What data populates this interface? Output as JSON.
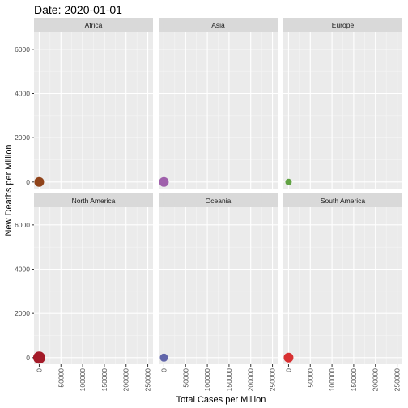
{
  "title": "Date: 2020-01-01",
  "colors": {
    "panel_bg": "#ebebeb",
    "strip_bg": "#d9d9d9",
    "grid_major": "#ffffff",
    "grid_minor": "#f5f5f5",
    "axis_text": "#4d4d4d",
    "axis_title": "#000000"
  },
  "chart_data": {
    "type": "scatter",
    "facet_layout": "2 rows x 3 columns",
    "xlabel": "Total Cases per Million",
    "ylabel": "New Deaths per Million",
    "xlim": [
      -12000,
      262000
    ],
    "ylim": [
      -300,
      6800
    ],
    "x_ticks": [
      0,
      50000,
      100000,
      150000,
      200000,
      250000
    ],
    "y_ticks": [
      0,
      2000,
      4000,
      6000
    ],
    "grid": true,
    "legend": "none",
    "panels": [
      {
        "name": "Africa",
        "points": [
          {
            "x": 0,
            "y": 0,
            "size": "large",
            "color": "#8b3a0f"
          }
        ]
      },
      {
        "name": "Asia",
        "points": [
          {
            "x": 0,
            "y": 0,
            "size": "large",
            "color": "#9b59a8"
          }
        ]
      },
      {
        "name": "Europe",
        "points": [
          {
            "x": 0,
            "y": 0,
            "size": "small",
            "color": "#5a9e3a"
          }
        ]
      },
      {
        "name": "North America",
        "points": [
          {
            "x": 0,
            "y": 0,
            "size": "xlarge",
            "color": "#a0101f"
          }
        ]
      },
      {
        "name": "Oceania",
        "points": [
          {
            "x": 0,
            "y": 0,
            "size": "medium",
            "color": "#5a5fa6"
          }
        ]
      },
      {
        "name": "South America",
        "points": [
          {
            "x": 0,
            "y": 0,
            "size": "large",
            "color": "#d62728"
          }
        ]
      }
    ]
  }
}
